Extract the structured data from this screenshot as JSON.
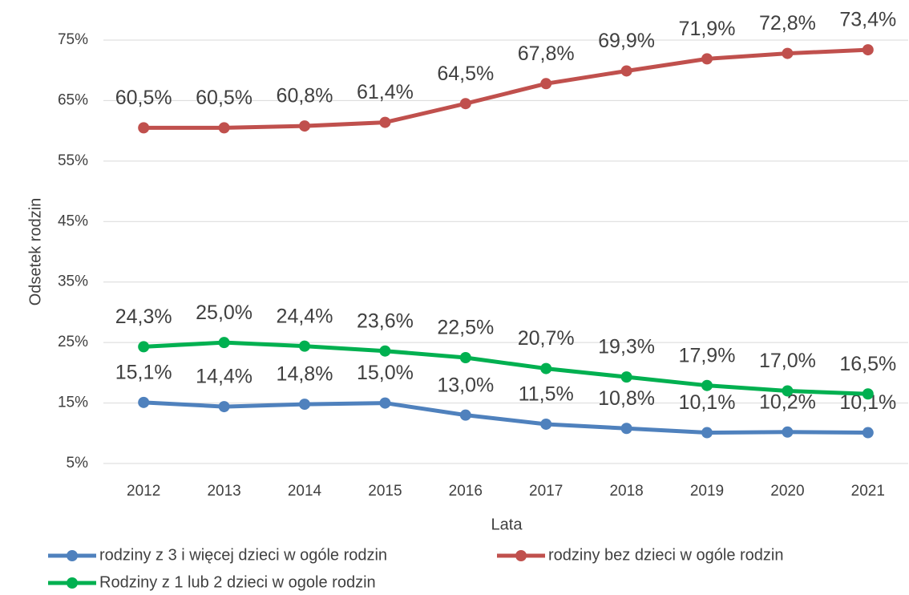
{
  "chart_data": {
    "type": "line",
    "x_label": "Lata",
    "y_label": "Odsetek rodzin",
    "categories": [
      "2012",
      "2013",
      "2014",
      "2015",
      "2016",
      "2017",
      "2018",
      "2019",
      "2020",
      "2021"
    ],
    "series": [
      {
        "name": "rodziny z 3 i więcej dzieci w ogóle rodzin",
        "color": "#4f81bd",
        "values": [
          15.1,
          14.4,
          14.8,
          15.0,
          13.0,
          11.5,
          10.8,
          10.1,
          10.2,
          10.1
        ],
        "value_labels": [
          "15,1%",
          "14,4%",
          "14,8%",
          "15,0%",
          "13,0%",
          "11,5%",
          "10,8%",
          "10,1%",
          "10,2%",
          "10,1%"
        ]
      },
      {
        "name": "rodziny bez dzieci w ogóle rodzin",
        "color": "#c0504d",
        "values": [
          60.5,
          60.5,
          60.8,
          61.4,
          64.5,
          67.8,
          69.9,
          71.9,
          72.8,
          73.4
        ],
        "value_labels": [
          "60,5%",
          "60,5%",
          "60,8%",
          "61,4%",
          "64,5%",
          "67,8%",
          "69,9%",
          "71,9%",
          "72,8%",
          "73,4%"
        ]
      },
      {
        "name": "Rodziny z 1 lub 2 dzieci w ogole rodzin",
        "color": "#00b050",
        "values": [
          24.3,
          25.0,
          24.4,
          23.6,
          22.5,
          20.7,
          19.3,
          17.9,
          17.0,
          16.5
        ],
        "value_labels": [
          "24,3%",
          "25,0%",
          "24,4%",
          "23,6%",
          "22,5%",
          "20,7%",
          "19,3%",
          "17,9%",
          "17,0%",
          "16,5%"
        ]
      }
    ],
    "ylim": [
      5,
      75
    ],
    "yticks": [
      {
        "value": 5,
        "label": "5%"
      },
      {
        "value": 15,
        "label": "15%"
      },
      {
        "value": 25,
        "label": "25%"
      },
      {
        "value": 35,
        "label": "35%"
      },
      {
        "value": 45,
        "label": "45%"
      },
      {
        "value": 55,
        "label": "55%"
      },
      {
        "value": 65,
        "label": "65%"
      },
      {
        "value": 75,
        "label": "75%"
      }
    ],
    "grid": true,
    "legend": "bottom"
  }
}
